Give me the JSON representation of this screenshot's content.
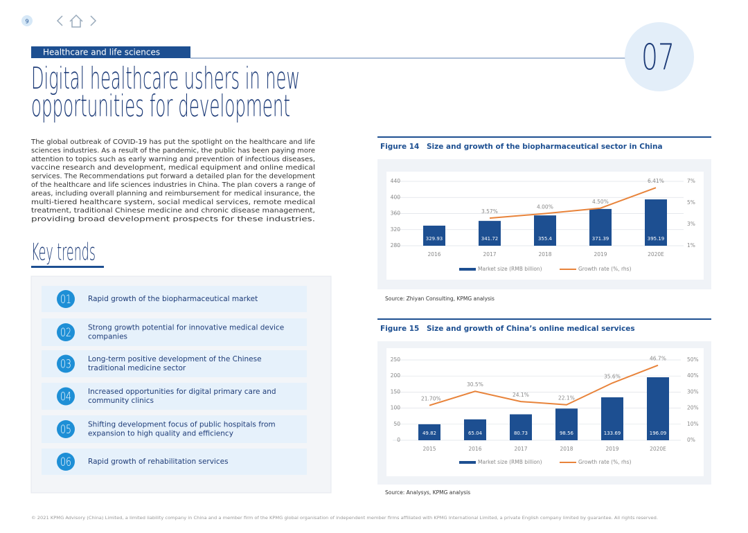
{
  "page_number": "9",
  "section": "Healthcare and life sciences",
  "chapter": "07",
  "title": [
    "Digital healthcare ushers in new",
    "opportunities for development"
  ],
  "intro": [
    "The global outbreak of COVID-19 has put the spotlight on the healthcare and life",
    "sciences industries. As a result of the pandemic, the public has been paying more",
    "attention to topics such as early warning and prevention of infectious diseases,",
    "vaccine research and development, medical equipment and online medical",
    "services. The Recommendations put forward a detailed plan for the development",
    "of the healthcare and life sciences industries in China. The plan covers a range of",
    "areas, including overall planning and reimbursement for medical insurance, the",
    "multi-tiered healthcare system, social medical services, remote medical",
    "treatment, traditional Chinese medicine and chronic disease management,",
    "providing broad development prospects for these industries."
  ],
  "key_trends": {
    "heading": "Key trends",
    "items": [
      {
        "number": "01",
        "lines": [
          "Rapid growth of the biopharmaceutical market"
        ]
      },
      {
        "number": "02",
        "lines": [
          "Strong growth potential for innovative medical device",
          "companies"
        ]
      },
      {
        "number": "03",
        "lines": [
          "Long-term positive development of the Chinese",
          "traditional medicine sector"
        ]
      },
      {
        "number": "04",
        "lines": [
          "Increased opportunities for digital primary care and",
          "community clinics"
        ]
      },
      {
        "number": "05",
        "lines": [
          "Shifting development focus of public hospitals from",
          "expansion to high quality and efficiency"
        ]
      },
      {
        "number": "06",
        "lines": [
          "Rapid growth of rehabilitation services"
        ]
      }
    ]
  },
  "chart_data": [
    {
      "type": "bar",
      "figure": "Figure 14",
      "title": "Size and growth of the biopharmaceutical sector in China",
      "categories": [
        "2016",
        "2017",
        "2018",
        "2019",
        "2020E"
      ],
      "series": [
        {
          "name": "Market size (RMB billion)",
          "color": "#1d4f91",
          "values": [
            329.93,
            341.72,
            355.4,
            371.39,
            395.19
          ]
        },
        {
          "name": "Growth rate (%, rhs)",
          "type": "line",
          "axis": "y2",
          "color": "#e8833a",
          "values": [
            null,
            3.57,
            4.0,
            4.5,
            6.41
          ],
          "value_labels": [
            null,
            "3.57%",
            "4.00%",
            "4.50%",
            "6.41%"
          ]
        }
      ],
      "ylim": [
        280,
        440
      ],
      "yticks": [
        280,
        320,
        360,
        400,
        440
      ],
      "y2lim": [
        1,
        7
      ],
      "y2ticks": [
        {
          "value": 1,
          "label": "1%"
        },
        {
          "value": 3,
          "label": "3%"
        },
        {
          "value": 5,
          "label": "5%"
        },
        {
          "value": 7,
          "label": "7%"
        }
      ],
      "grid": true,
      "legend": "bottom",
      "source": "Source: Zhiyan Consulting, KPMG analysis"
    },
    {
      "type": "bar",
      "figure": "Figure 15",
      "title": "Size and growth of China’s online medical services",
      "categories": [
        "2015",
        "2016",
        "2017",
        "2018",
        "2019",
        "2020E"
      ],
      "series": [
        {
          "name": "Market size (RMB billion)",
          "color": "#1d4f91",
          "values": [
            49.82,
            65.04,
            80.73,
            98.56,
            133.69,
            196.09
          ]
        },
        {
          "name": "Growth rate (%, rhs)",
          "type": "line",
          "axis": "y2",
          "color": "#e8833a",
          "values": [
            21.7,
            30.5,
            24.1,
            22.1,
            35.6,
            46.7
          ],
          "value_labels": [
            "21.70%",
            "30.5%",
            "24.1%",
            "22.1%",
            "35.6%",
            "46.7%"
          ]
        }
      ],
      "ylim": [
        0,
        250
      ],
      "yticks": [
        0,
        50,
        100,
        150,
        200,
        250
      ],
      "y2lim": [
        0,
        50
      ],
      "y2ticks": [
        {
          "value": 0,
          "label": "0%"
        },
        {
          "value": 10,
          "label": "10%"
        },
        {
          "value": 20,
          "label": "20%"
        },
        {
          "value": 30,
          "label": "30%"
        },
        {
          "value": 40,
          "label": "40%"
        },
        {
          "value": 50,
          "label": "50%"
        }
      ],
      "grid": true,
      "legend": "bottom",
      "source": "Source: Analysys, KPMG analysis"
    }
  ],
  "footer": "© 2021 KPMG Advisory (China) Limited, a limited liability company in China and a member firm of the KPMG global organisation of independent member firms affiliated with KPMG International Limited, a private English company limited by guarantee. All rights reserved."
}
